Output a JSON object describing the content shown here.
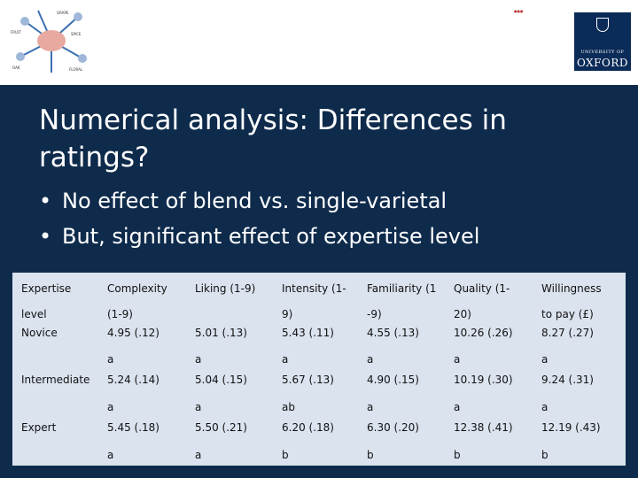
{
  "header": {
    "logo_left_labels": [
      "GRAPE",
      "FRUIT",
      "SPICE",
      "OAK",
      "FLORAL"
    ],
    "oxford_logo": {
      "university": "UNIVERSITY OF",
      "name": "OXFORD"
    },
    "colors": {
      "slide_bg": "#0f2b4c",
      "oxford_blue": "#0b2b58",
      "table_bg": "#dbe3ef"
    }
  },
  "title": "Numerical analysis: Differences in ratings?",
  "bullets": [
    "No effect of blend vs. single-varietal",
    "But, significant effect of expertise level"
  ],
  "table": {
    "header_top": [
      "Expertise",
      "Complexity",
      "Liking (1-9)",
      "Intensity (1-",
      "Familiarity (1",
      "Quality (1-",
      "Willingness"
    ],
    "header_bottom": [
      "level",
      "(1-9)",
      "",
      "9)",
      "-9)",
      "20)",
      "to pay (£)"
    ],
    "rows": [
      {
        "label": "Novice",
        "values": [
          "4.95 (.12)",
          "5.01 (.13)",
          "5.43 (.11)",
          "4.55 (.13)",
          "10.26 (.26)",
          "8.27 (.27)"
        ],
        "letters": [
          "a",
          "a",
          "a",
          "a",
          "a",
          "a"
        ]
      },
      {
        "label": "Intermediate",
        "values": [
          "5.24 (.14)",
          "5.04 (.15)",
          "5.67 (.13)",
          "4.90 (.15)",
          "10.19 (.30)",
          "9.24 (.31)"
        ],
        "letters": [
          "a",
          "a",
          "ab",
          "a",
          "a",
          "a"
        ]
      },
      {
        "label": "Expert",
        "values": [
          "5.45 (.18)",
          "5.50 (.21)",
          "6.20 (.18)",
          "6.30 (.20)",
          "12.38 (.41)",
          "12.19 (.43)"
        ],
        "letters": [
          "a",
          "a",
          "b",
          "b",
          "b",
          "b"
        ]
      }
    ]
  }
}
